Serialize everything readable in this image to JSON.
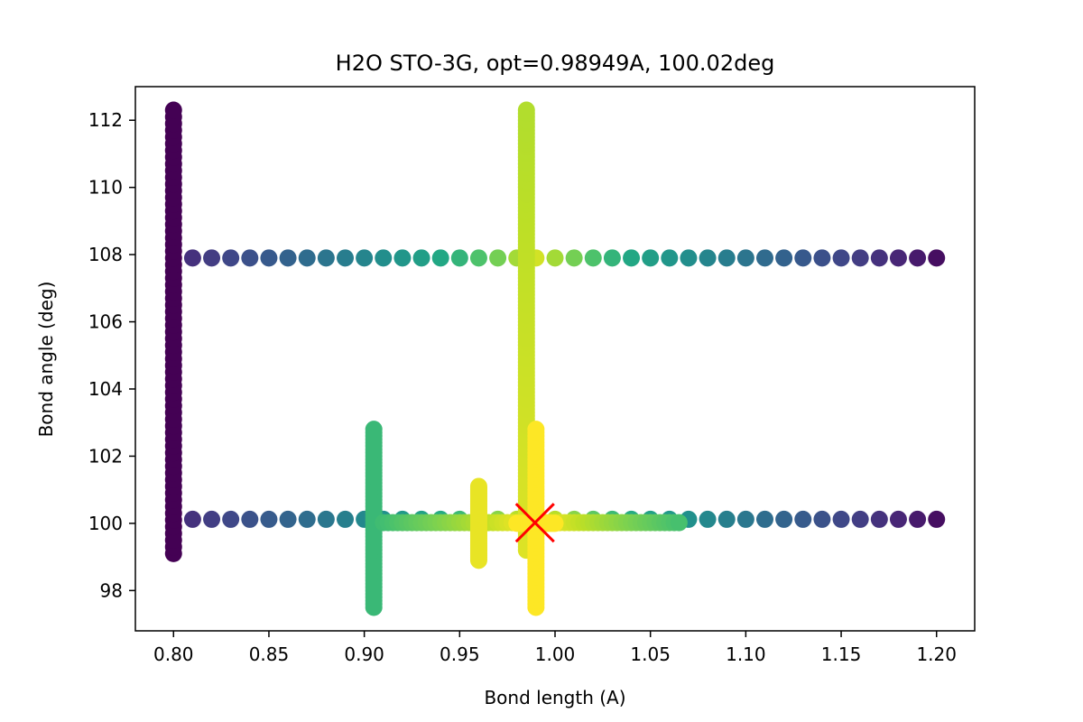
{
  "chart_data": {
    "type": "scatter",
    "title": "H2O STO-3G, opt=0.98949A, 100.02deg",
    "xlabel": "Bond length (A)",
    "ylabel": "Bond angle (deg)",
    "xlim": [
      0.78,
      1.22
    ],
    "ylim": [
      96.8,
      113.0
    ],
    "xticks": [
      "0.80",
      "0.85",
      "0.90",
      "0.95",
      "1.00",
      "1.05",
      "1.10",
      "1.15",
      "1.20"
    ],
    "yticks": [
      "98",
      "100",
      "102",
      "104",
      "106",
      "108",
      "110",
      "112"
    ],
    "grid": false,
    "colormap": "viridis",
    "color_meaning": "lower energy = brighter (yellow)",
    "scans": [
      {
        "kind": "angle",
        "x": 0.8,
        "y_from": 99.1,
        "y_to": 112.3,
        "step": 0.2,
        "c_from": 0.0,
        "c_to": 0.0
      },
      {
        "kind": "length",
        "y": 107.9,
        "x_from": 0.81,
        "x_to": 1.2,
        "step": 0.01,
        "c_peak": 0.96,
        "c_edge": 0.05,
        "peak_x": 0.99,
        "width": 0.21
      },
      {
        "kind": "length",
        "y": 100.12,
        "x_from": 0.81,
        "x_to": 1.2,
        "step": 0.01,
        "c_peak": 0.98,
        "c_edge": 0.05,
        "peak_x": 0.99,
        "width": 0.21
      },
      {
        "kind": "angle",
        "x": 0.905,
        "y_from": 97.5,
        "y_to": 102.8,
        "step": 0.1,
        "c_from": 0.8,
        "c_to": 0.8
      },
      {
        "kind": "length",
        "y": 100.02,
        "x_from": 0.91,
        "x_to": 1.065,
        "step": 0.0025,
        "c_peak": 1.0,
        "c_edge": 0.8,
        "peak_x": 0.99,
        "width": 0.085
      },
      {
        "kind": "angle",
        "x": 0.96,
        "y_from": 98.9,
        "y_to": 101.1,
        "step": 0.05,
        "c_from": 0.98,
        "c_to": 0.98
      },
      {
        "kind": "angle",
        "x": 0.985,
        "y_from": 99.2,
        "y_to": 112.3,
        "step": 0.1,
        "c_from": 0.97,
        "c_to": 0.93
      },
      {
        "kind": "angle",
        "x": 0.99,
        "y_from": 97.5,
        "y_to": 102.8,
        "step": 0.1,
        "c_from": 1.0,
        "c_to": 1.0
      },
      {
        "kind": "length",
        "y": 100.0,
        "x_from": 0.98,
        "x_to": 1.0,
        "step": 0.001,
        "c_peak": 1.0,
        "c_edge": 1.0,
        "peak_x": 0.99,
        "width": 0.1
      }
    ],
    "optimum": {
      "x": 0.98949,
      "y": 100.02,
      "marker": "x",
      "color": "#ff0000"
    }
  }
}
